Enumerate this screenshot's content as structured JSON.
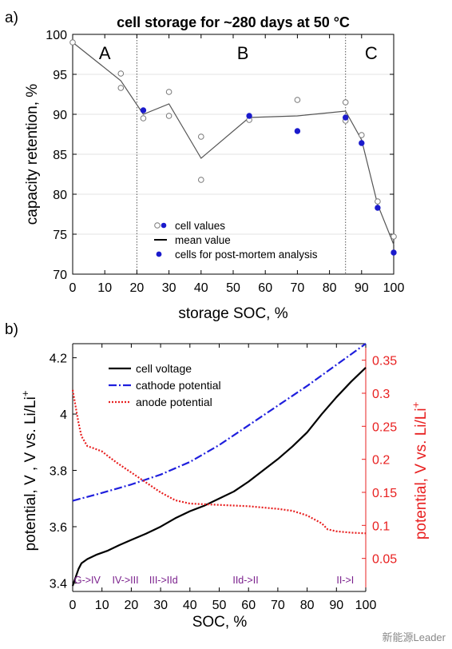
{
  "panel_a_label": "a)",
  "panel_b_label": "b)",
  "watermark": "新能源Leader",
  "chart_data": [
    {
      "type": "scatter",
      "title": "cell storage for ~280 days at 50 °C",
      "xlabel": "storage SOC, %",
      "ylabel": "capacity retention, %",
      "xlim": [
        0,
        100
      ],
      "ylim": [
        70,
        100
      ],
      "xticks": [
        0,
        10,
        20,
        30,
        40,
        50,
        60,
        70,
        80,
        90,
        100
      ],
      "yticks": [
        70,
        75,
        80,
        85,
        90,
        95,
        100
      ],
      "grid": "horizontal",
      "region_dividers": [
        20,
        85
      ],
      "regions": [
        {
          "label": "A",
          "x": 10
        },
        {
          "label": "B",
          "x": 53
        },
        {
          "label": "C",
          "x": 93
        }
      ],
      "legend": {
        "placement": "bottom-center",
        "entries": [
          "cell values",
          "mean value",
          "cells for post-mortem analysis"
        ]
      },
      "series": [
        {
          "name": "cell values",
          "marker": "open-circle",
          "points": [
            [
              0,
              99.0
            ],
            [
              15,
              95.1
            ],
            [
              15,
              93.3
            ],
            [
              22,
              89.5
            ],
            [
              30,
              92.8
            ],
            [
              30,
              89.8
            ],
            [
              40,
              87.2
            ],
            [
              40,
              81.8
            ],
            [
              55,
              89.3
            ],
            [
              70,
              91.8
            ],
            [
              85,
              91.5
            ],
            [
              85,
              89.2
            ],
            [
              90,
              87.4
            ],
            [
              95,
              79.1
            ],
            [
              100,
              74.7
            ]
          ]
        },
        {
          "name": "mean value",
          "marker": "line",
          "points": [
            [
              0,
              99.0
            ],
            [
              15,
              94.2
            ],
            [
              22,
              90.0
            ],
            [
              30,
              91.3
            ],
            [
              40,
              84.5
            ],
            [
              55,
              89.6
            ],
            [
              70,
              89.8
            ],
            [
              85,
              90.4
            ],
            [
              90,
              86.8
            ],
            [
              95,
              78.7
            ],
            [
              100,
              73.7
            ]
          ]
        },
        {
          "name": "cells for post-mortem analysis",
          "marker": "filled-circle",
          "points": [
            [
              22,
              90.5
            ],
            [
              55,
              89.8
            ],
            [
              70,
              87.9
            ],
            [
              85,
              89.6
            ],
            [
              90,
              86.4
            ],
            [
              95,
              78.3
            ],
            [
              100,
              72.7
            ]
          ]
        }
      ]
    },
    {
      "type": "line",
      "xlabel": "SOC, %",
      "ylabel": "potential, V , V vs. Li/Li",
      "ylabel_superscript": "+",
      "ylabel_right": "potential, V vs. Li/Li",
      "ylabel_right_superscript": "+",
      "xlim": [
        0,
        100
      ],
      "ylim": [
        3.37,
        4.25
      ],
      "ylim_right": [
        0,
        0.375
      ],
      "xticks": [
        0,
        10,
        20,
        30,
        40,
        50,
        60,
        70,
        80,
        90,
        100
      ],
      "yticks": [
        3.4,
        3.6,
        3.8,
        4,
        4.2
      ],
      "yticks_right": [
        0.05,
        0.1,
        0.15,
        0.2,
        0.25,
        0.3,
        0.35
      ],
      "grid": "none",
      "legend": {
        "placement": "top-left",
        "entries": [
          "cell voltage",
          "cathode potential",
          "anode potential"
        ]
      },
      "stage_labels": [
        {
          "label": "G->IV",
          "x": 5
        },
        {
          "label": "IV->III",
          "x": 18
        },
        {
          "label": "III->IId",
          "x": 31
        },
        {
          "label": "IId->II",
          "x": 59
        },
        {
          "label": "II->I",
          "x": 93
        }
      ],
      "series": [
        {
          "name": "cell voltage",
          "axis": "left",
          "color": "#000000",
          "style": "solid",
          "x": [
            0,
            1,
            2,
            3,
            5,
            8,
            12,
            16,
            20,
            25,
            30,
            35,
            40,
            45,
            50,
            55,
            60,
            65,
            70,
            75,
            80,
            85,
            90,
            95,
            100
          ],
          "y": [
            3.39,
            3.42,
            3.45,
            3.47,
            3.485,
            3.5,
            3.515,
            3.535,
            3.553,
            3.575,
            3.6,
            3.63,
            3.655,
            3.675,
            3.7,
            3.725,
            3.76,
            3.8,
            3.84,
            3.885,
            3.935,
            4.0,
            4.06,
            4.115,
            4.165
          ]
        },
        {
          "name": "cathode potential",
          "axis": "left",
          "color": "#1f1fdd",
          "style": "dashdot",
          "x": [
            0,
            10,
            20,
            30,
            40,
            50,
            60,
            70,
            80,
            90,
            100
          ],
          "y": [
            3.692,
            3.72,
            3.75,
            3.785,
            3.83,
            3.89,
            3.96,
            4.03,
            4.1,
            4.175,
            4.25
          ]
        },
        {
          "name": "anode potential",
          "axis": "right",
          "color": "#e82020",
          "style": "dotted",
          "x": [
            0,
            1,
            2,
            3,
            5,
            7,
            10,
            12,
            15,
            20,
            25,
            30,
            35,
            40,
            45,
            50,
            55,
            60,
            65,
            70,
            75,
            80,
            85,
            87,
            90,
            95,
            100
          ],
          "y": [
            0.305,
            0.28,
            0.255,
            0.235,
            0.22,
            0.217,
            0.212,
            0.205,
            0.195,
            0.18,
            0.165,
            0.15,
            0.138,
            0.133,
            0.132,
            0.131,
            0.13,
            0.129,
            0.127,
            0.125,
            0.122,
            0.115,
            0.103,
            0.094,
            0.091,
            0.089,
            0.088
          ]
        }
      ]
    }
  ]
}
